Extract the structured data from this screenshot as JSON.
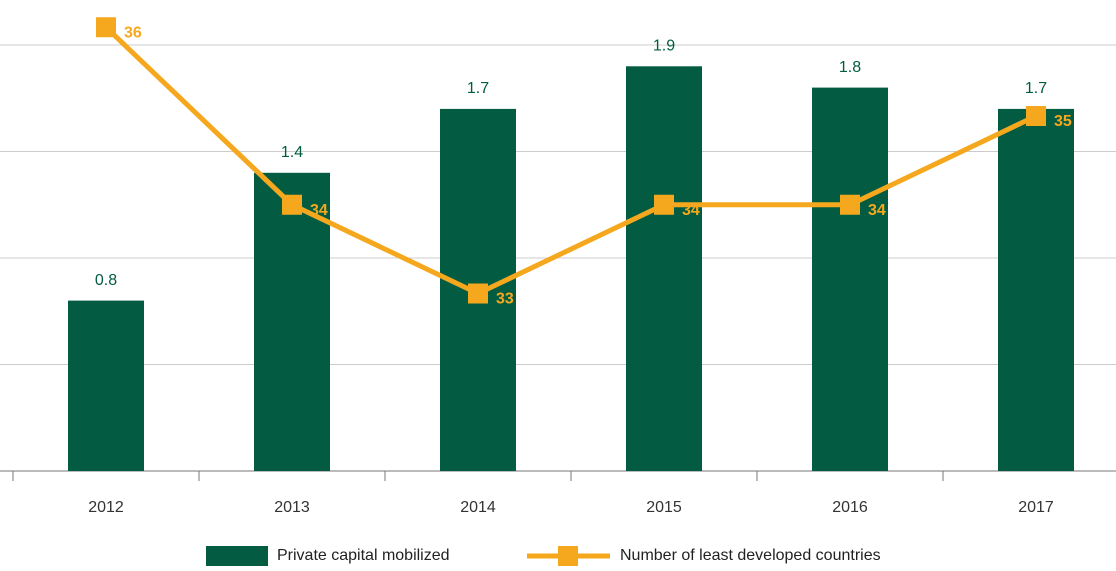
{
  "chart_data": {
    "type": "bar-line",
    "categories": [
      "2012",
      "2013",
      "2014",
      "2015",
      "2016",
      "2017"
    ],
    "series": [
      {
        "name": "Private capital mobilized",
        "type": "bar",
        "color": "#035c42",
        "values": [
          0.8,
          1.4,
          1.7,
          1.9,
          1.8,
          1.7
        ]
      },
      {
        "name": "Number of least developed countries",
        "type": "line",
        "axis": "y2",
        "color": "#f5a81e",
        "values": [
          36,
          34,
          33,
          34,
          34,
          35
        ]
      }
    ],
    "ylim": [
      0,
      2
    ],
    "yticks": [
      0,
      0.5,
      1,
      1.5,
      2
    ],
    "y2lim": [
      31,
      35.8
    ],
    "grid": true
  }
}
